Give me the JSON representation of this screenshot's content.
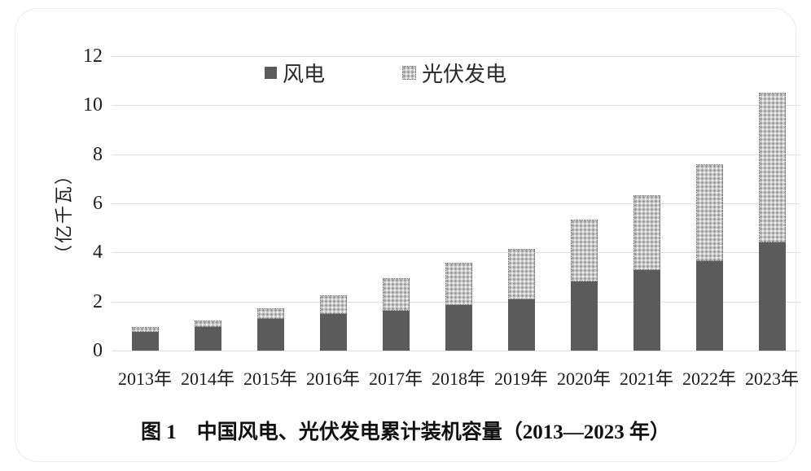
{
  "chart_data": {
    "type": "bar",
    "stacked": true,
    "title": "图 1　中国风电、光伏发电累计装机容量（2013—2023 年）",
    "ylabel": "（亿千瓦）",
    "ylim": [
      0,
      12
    ],
    "yticks": [
      0,
      2,
      4,
      6,
      8,
      10,
      12
    ],
    "grid": "horizontal",
    "legend_position": "top-center",
    "categories": [
      "2013年",
      "2014年",
      "2015年",
      "2016年",
      "2017年",
      "2018年",
      "2019年",
      "2020年",
      "2021年",
      "2022年",
      "2023年"
    ],
    "series": [
      {
        "name": "风电",
        "key": "wind",
        "color": "#5b5b5b",
        "pattern": "solid",
        "values": [
          0.77,
          0.96,
          1.29,
          1.49,
          1.64,
          1.84,
          2.1,
          2.81,
          3.28,
          3.65,
          4.41
        ]
      },
      {
        "name": "光伏发电",
        "key": "solar",
        "color": "#c9c9c9",
        "pattern": "dots",
        "values": [
          0.19,
          0.28,
          0.43,
          0.77,
          1.3,
          1.74,
          2.04,
          2.53,
          3.06,
          3.93,
          6.09
        ]
      }
    ],
    "totals": [
      0.96,
      1.24,
      1.72,
      2.26,
      2.94,
      3.58,
      4.14,
      5.34,
      6.34,
      7.58,
      10.5
    ]
  },
  "colors": {
    "wind_fill": "#5b5b5b",
    "solar_base": "#c9c9c9",
    "solar_dot_dark": "#8d8d8d",
    "solar_dot_light": "#efefef",
    "gridline": "#dedede",
    "text": "#1c1c1c",
    "card_border": "#ececec",
    "background": "#ffffff"
  }
}
